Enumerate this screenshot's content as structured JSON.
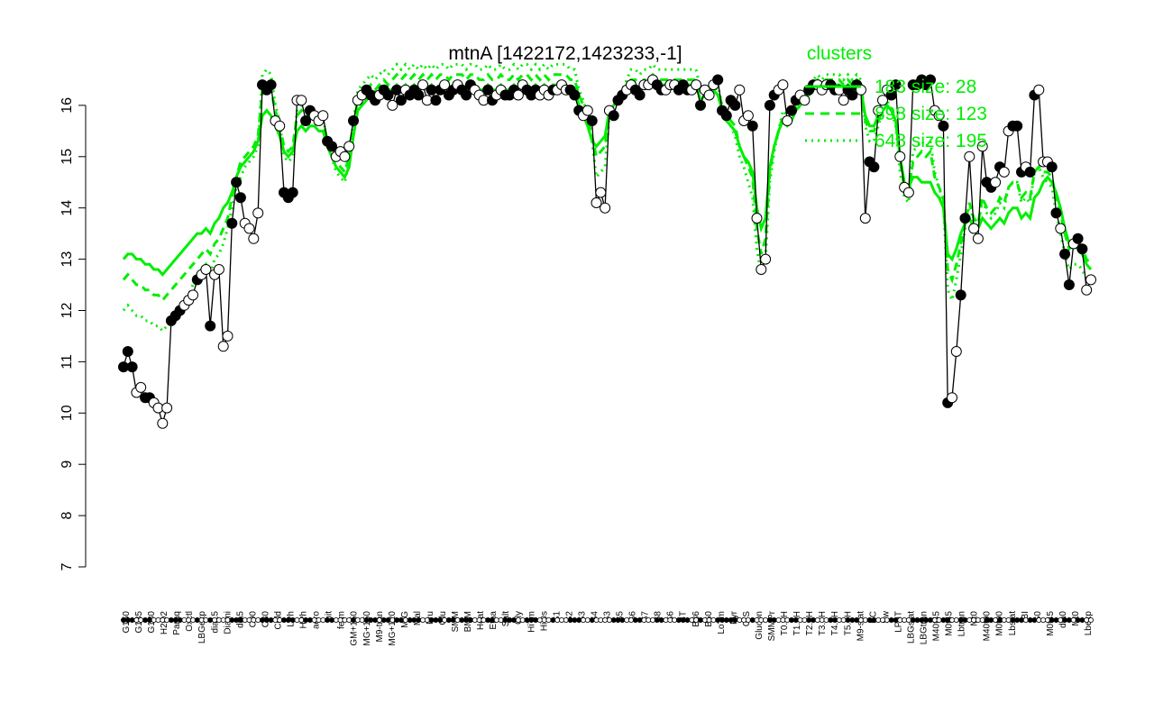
{
  "chart_data": {
    "type": "line",
    "title": "mtnA [1422172,1423233,-1]",
    "xlabel": "",
    "ylabel": "",
    "ylim": [
      7,
      17
    ],
    "y_ticks": [
      "7",
      "8",
      "9",
      "10",
      "11",
      "12",
      "13",
      "14",
      "15",
      "16"
    ],
    "grid": false,
    "legend": {
      "title": "clusters",
      "placement": "top-right",
      "entries": [
        "183 size: 28",
        "898 size: 123",
        "648 size: 195"
      ]
    },
    "x_labels": [
      "G150",
      "G135",
      "G180",
      "H2O2",
      "Paraq",
      "Oxctl",
      "LBGexp",
      "dia15",
      "Diami",
      "dia5",
      "C90",
      "C30",
      "Cold",
      "LPh",
      "HPh",
      "aero",
      "nit",
      "ferm",
      "GM+150",
      "MG+150",
      "M9-tran",
      "MG+120",
      "M/G",
      "Mal",
      "Fru",
      "Glu",
      "SMM",
      "BMM",
      "Heat",
      "Etha",
      "Salt",
      "Gly",
      "HiTm",
      "HiOs",
      "S1",
      "S2",
      "S3",
      "S4",
      "S3",
      "S5",
      "S6",
      "S7",
      "S8",
      "S6",
      "BT",
      "B36",
      "B60",
      "LoTm",
      "Pyr",
      "G/S",
      "Glucon",
      "SMMPr",
      "T0.0H",
      "T1.0H",
      "T2.0H",
      "T3.0H",
      "T4.0H",
      "T5.0H",
      "M9-stat",
      "BC",
      "Sw",
      "LPhT",
      "LBGstat",
      "LBGtran",
      "M40t45",
      "M0t45",
      "Lbtran",
      "Mt0",
      "M40t90",
      "M0t90",
      "Lbstat",
      "BI",
      "S0",
      "M0t45",
      "dia0",
      "Mt0",
      "Lbexp"
    ],
    "series": [
      {
        "color": "#000000",
        "values": [
          10.9,
          11.2,
          10.9,
          10.4,
          10.5,
          10.3,
          10.3,
          10.2,
          10.1,
          9.8,
          10.1,
          11.8,
          11.9,
          12.0,
          12.1,
          12.2,
          12.3,
          12.6,
          12.7,
          12.8,
          11.7,
          12.7,
          12.8,
          11.3,
          11.5,
          13.7,
          14.5,
          14.2,
          13.7,
          13.6,
          13.4,
          13.9,
          16.4,
          16.3,
          16.4,
          15.7,
          15.6,
          14.3,
          14.2,
          14.3,
          16.1,
          16.1,
          15.7,
          15.9,
          15.8,
          15.7,
          15.8,
          15.3,
          15.2,
          15.0,
          15.1,
          15.0,
          15.2,
          15.7,
          16.1,
          16.2,
          16.3,
          16.2,
          16.1,
          16.2,
          16.3,
          16.2,
          16.0,
          16.3,
          16.1,
          16.3,
          16.2,
          16.3,
          16.2,
          16.4,
          16.1,
          16.3,
          16.1,
          16.3,
          16.4,
          16.2,
          16.3,
          16.4,
          16.3,
          16.2,
          16.4,
          16.3,
          16.2,
          16.1,
          16.3,
          16.1,
          16.2,
          16.3,
          16.2,
          16.2,
          16.3,
          16.2,
          16.4,
          16.3,
          16.2,
          16.3,
          16.2,
          16.3,
          16.2,
          16.3,
          16.3,
          16.4,
          16.3,
          16.3,
          16.2,
          15.9,
          15.8,
          15.9,
          15.7,
          14.1,
          14.3,
          14.0,
          15.9,
          15.8,
          16.1,
          16.2,
          16.3,
          16.4,
          16.3,
          16.2,
          16.4,
          16.4,
          16.5,
          16.4,
          16.3,
          16.3,
          16.4,
          16.4,
          16.3,
          16.4,
          16.3,
          16.3,
          16.4,
          16.0,
          16.3,
          16.2,
          16.4,
          16.5,
          15.9,
          15.8,
          16.1,
          16.0,
          16.3,
          15.7,
          15.8,
          15.6,
          13.8,
          12.8,
          13.0,
          16.0,
          16.2,
          16.3,
          16.4,
          15.7,
          15.9,
          16.1,
          16.2,
          16.1,
          16.3,
          16.4,
          16.4,
          16.3,
          16.4,
          16.4,
          16.3,
          16.3,
          16.1,
          16.3,
          16.2,
          16.4,
          16.3,
          13.8,
          14.9,
          14.8,
          15.9,
          16.1,
          16.3,
          16.2,
          16.4,
          15.0,
          14.4,
          14.3,
          16.4,
          16.4,
          16.5,
          16.4,
          16.5,
          15.9,
          15.8,
          15.6,
          10.2,
          10.3,
          11.2,
          12.3,
          13.8,
          15.0,
          13.6,
          13.4,
          15.2,
          14.5,
          14.4,
          14.5,
          14.8,
          14.7,
          15.5,
          15.6,
          15.6,
          14.7,
          14.8,
          14.7,
          16.2,
          16.3,
          14.9,
          14.9,
          14.8,
          13.9,
          13.6,
          13.1,
          12.5,
          13.3,
          13.4,
          13.2,
          12.4,
          12.6
        ],
        "markers": [
          1,
          1,
          1,
          0,
          0,
          1,
          1,
          0,
          0,
          0,
          0,
          1,
          1,
          1,
          0,
          0,
          0,
          1,
          0,
          0,
          1,
          0,
          0,
          0,
          0,
          1,
          1,
          1,
          0,
          0,
          0,
          0,
          1,
          1,
          1,
          0,
          0,
          1,
          1,
          1,
          0,
          0,
          1,
          1,
          0,
          0,
          0,
          1,
          1,
          0,
          0,
          0,
          0,
          1,
          0,
          0,
          1,
          1,
          1,
          0,
          1,
          1,
          0,
          1,
          1,
          0,
          1,
          1,
          1,
          0,
          0,
          1,
          1,
          1,
          0,
          1,
          1,
          0,
          1,
          1,
          1,
          0,
          0,
          0,
          1,
          1,
          0,
          0,
          1,
          1,
          1,
          0,
          0,
          1,
          1,
          1,
          0,
          0,
          0,
          1,
          0,
          0,
          0,
          1,
          1,
          1,
          0,
          0,
          1,
          0,
          0,
          0,
          0,
          1,
          1,
          1,
          0,
          0,
          1,
          1,
          0,
          0,
          0,
          1,
          1,
          0,
          0,
          0,
          1,
          1,
          1,
          0,
          0,
          1,
          0,
          0,
          0,
          1,
          1,
          1,
          1,
          1,
          0,
          0,
          0,
          1,
          0,
          0,
          0,
          1,
          1,
          0,
          0,
          0,
          1,
          1,
          0,
          0,
          1,
          1,
          0,
          0,
          0,
          1,
          1,
          0,
          0,
          1,
          1,
          1,
          0,
          0,
          1,
          1,
          0,
          0,
          0,
          1,
          1,
          0,
          0,
          0,
          1,
          1,
          1,
          1,
          1,
          0,
          0,
          1,
          1,
          0,
          0,
          1,
          1,
          0,
          0,
          0,
          0,
          1,
          1,
          0,
          1,
          0,
          0,
          1,
          1,
          1,
          0,
          1,
          1,
          0,
          0,
          0,
          1,
          1,
          0,
          1,
          1,
          0,
          1,
          1,
          0,
          0,
          1,
          0,
          0,
          1,
          0,
          0,
          1
        ]
      },
      {
        "color": "#00ee00",
        "dash": "solid",
        "values": [
          13.0,
          13.1,
          13.1,
          13.0,
          13.0,
          12.9,
          12.9,
          12.8,
          12.8,
          12.7,
          12.8,
          12.9,
          13.0,
          13.1,
          13.2,
          13.3,
          13.4,
          13.5,
          13.5,
          13.6,
          13.5,
          13.7,
          13.8,
          14.0,
          14.1,
          14.3,
          14.6,
          14.8,
          14.9,
          15.0,
          15.1,
          15.3,
          15.8,
          15.9,
          15.8,
          15.6,
          15.4,
          15.1,
          15.0,
          15.1,
          15.5,
          15.6,
          15.5,
          15.6,
          15.6,
          15.5,
          15.5,
          15.2,
          15.0,
          14.8,
          14.7,
          14.6,
          14.8,
          15.4,
          15.9,
          16.0,
          16.1,
          16.2,
          16.1,
          16.2,
          16.3,
          16.3,
          16.3,
          16.4,
          16.3,
          16.4,
          16.3,
          16.4,
          16.3,
          16.4,
          16.3,
          16.4,
          16.3,
          16.4,
          16.4,
          16.3,
          16.4,
          16.4,
          16.4,
          16.3,
          16.4,
          16.4,
          16.3,
          16.3,
          16.4,
          16.3,
          16.3,
          16.4,
          16.3,
          16.3,
          16.4,
          16.3,
          16.4,
          16.4,
          16.3,
          16.4,
          16.3,
          16.4,
          16.3,
          16.4,
          16.4,
          16.4,
          16.4,
          16.3,
          16.3,
          16.0,
          15.8,
          15.6,
          15.3,
          15.2,
          15.3,
          15.4,
          15.9,
          16.0,
          16.1,
          16.2,
          16.3,
          16.4,
          16.4,
          16.3,
          16.4,
          16.4,
          16.5,
          16.4,
          16.4,
          16.4,
          16.4,
          16.4,
          16.4,
          16.4,
          16.4,
          16.4,
          16.4,
          16.1,
          16.2,
          16.2,
          16.3,
          16.2,
          15.9,
          15.7,
          15.6,
          15.5,
          15.2,
          15.0,
          14.9,
          14.7,
          14.0,
          13.6,
          13.8,
          14.8,
          15.2,
          15.5,
          15.7,
          15.6,
          15.7,
          15.9,
          16.0,
          16.1,
          16.2,
          16.3,
          16.4,
          16.3,
          16.4,
          16.4,
          16.4,
          16.4,
          16.3,
          16.4,
          16.3,
          16.4,
          16.3,
          15.8,
          15.6,
          15.6,
          15.8,
          15.9,
          16.0,
          15.9,
          15.7,
          15.0,
          14.5,
          14.4,
          14.6,
          14.6,
          14.5,
          14.5,
          14.5,
          14.3,
          14.2,
          14.0,
          13.1,
          13.0,
          13.2,
          13.5,
          13.7,
          13.8,
          13.6,
          13.6,
          13.8,
          13.7,
          13.6,
          13.7,
          13.8,
          13.7,
          13.9,
          14.0,
          14.0,
          13.8,
          13.9,
          13.8,
          14.2,
          14.3,
          14.5,
          14.6,
          14.5,
          14.3,
          14.0,
          13.6,
          13.3,
          13.3,
          13.2,
          13.1,
          12.9,
          12.8
        ]
      },
      {
        "color": "#00ee00",
        "dash": "dash",
        "values": [
          12.6,
          12.7,
          12.6,
          12.5,
          12.5,
          12.4,
          12.4,
          12.3,
          12.3,
          12.2,
          12.3,
          12.4,
          12.5,
          12.6,
          12.7,
          12.8,
          12.9,
          13.0,
          13.1,
          13.2,
          13.1,
          13.3,
          13.4,
          13.6,
          13.8,
          14.2,
          14.6,
          14.9,
          15.0,
          15.1,
          15.2,
          15.4,
          16.3,
          16.4,
          16.3,
          15.9,
          15.6,
          15.2,
          15.1,
          15.2,
          15.8,
          15.9,
          15.8,
          15.8,
          15.8,
          15.7,
          15.7,
          15.3,
          15.1,
          14.9,
          14.8,
          14.7,
          15.0,
          15.6,
          16.1,
          16.2,
          16.3,
          16.4,
          16.3,
          16.4,
          16.5,
          16.4,
          16.5,
          16.6,
          16.5,
          16.6,
          16.5,
          16.6,
          16.5,
          16.6,
          16.5,
          16.6,
          16.5,
          16.6,
          16.6,
          16.5,
          16.6,
          16.6,
          16.6,
          16.5,
          16.6,
          16.6,
          16.5,
          16.5,
          16.6,
          16.5,
          16.5,
          16.6,
          16.5,
          16.5,
          16.6,
          16.5,
          16.6,
          16.6,
          16.5,
          16.6,
          16.5,
          16.6,
          16.5,
          16.6,
          16.6,
          16.6,
          16.6,
          16.5,
          16.5,
          16.2,
          16.0,
          15.8,
          15.4,
          15.0,
          15.1,
          15.2,
          15.9,
          16.0,
          16.1,
          16.3,
          16.4,
          16.5,
          16.5,
          16.4,
          16.5,
          16.5,
          16.6,
          16.5,
          16.5,
          16.5,
          16.5,
          16.5,
          16.5,
          16.5,
          16.5,
          16.5,
          16.5,
          16.2,
          16.3,
          16.3,
          16.4,
          16.3,
          16.0,
          15.8,
          15.7,
          15.6,
          15.2,
          15.0,
          14.8,
          14.6,
          13.6,
          13.1,
          13.4,
          14.7,
          15.2,
          15.5,
          15.8,
          15.7,
          15.8,
          16.0,
          16.1,
          16.2,
          16.3,
          16.4,
          16.5,
          16.4,
          16.5,
          16.5,
          16.5,
          16.5,
          16.4,
          16.5,
          16.4,
          16.5,
          16.4,
          15.7,
          15.5,
          15.5,
          15.7,
          15.9,
          16.0,
          15.9,
          15.7,
          14.9,
          14.4,
          14.3,
          14.9,
          15.0,
          15.1,
          15.0,
          15.1,
          14.6,
          14.4,
          14.2,
          12.8,
          12.6,
          12.9,
          13.3,
          13.7,
          14.1,
          13.8,
          13.7,
          14.2,
          14.0,
          13.9,
          14.0,
          14.2,
          14.1,
          14.4,
          14.5,
          14.5,
          14.2,
          14.3,
          14.2,
          14.7,
          14.8,
          14.7,
          14.7,
          14.6,
          14.2,
          13.9,
          13.5,
          13.2,
          13.3,
          13.3,
          13.2,
          13.0,
          12.9
        ]
      },
      {
        "color": "#00ee00",
        "dash": "dot",
        "values": [
          12.0,
          12.1,
          12.0,
          11.9,
          11.9,
          11.8,
          11.8,
          11.7,
          11.7,
          11.6,
          11.7,
          11.8,
          11.9,
          12.0,
          12.2,
          12.3,
          12.5,
          12.7,
          12.8,
          12.9,
          12.7,
          13.0,
          13.1,
          13.3,
          13.6,
          14.0,
          14.4,
          14.6,
          14.8,
          14.9,
          15.0,
          15.2,
          16.6,
          16.7,
          16.6,
          16.0,
          15.7,
          15.0,
          14.9,
          15.0,
          15.9,
          16.0,
          15.9,
          15.9,
          15.9,
          15.8,
          15.8,
          15.2,
          15.0,
          14.7,
          14.6,
          14.5,
          14.9,
          15.7,
          16.3,
          16.4,
          16.5,
          16.6,
          16.5,
          16.6,
          16.7,
          16.6,
          16.7,
          16.8,
          16.7,
          16.8,
          16.7,
          16.8,
          16.7,
          16.8,
          16.7,
          16.8,
          16.7,
          16.8,
          16.8,
          16.7,
          16.8,
          16.8,
          16.8,
          16.7,
          16.8,
          16.8,
          16.7,
          16.7,
          16.8,
          16.7,
          16.7,
          16.8,
          16.7,
          16.7,
          16.8,
          16.7,
          16.8,
          16.8,
          16.7,
          16.8,
          16.7,
          16.8,
          16.7,
          16.8,
          16.8,
          16.8,
          16.8,
          16.7,
          16.7,
          16.3,
          16.1,
          15.8,
          15.3,
          14.6,
          14.7,
          14.8,
          15.8,
          16.0,
          16.1,
          16.3,
          16.5,
          16.7,
          16.7,
          16.6,
          16.7,
          16.7,
          16.8,
          16.7,
          16.7,
          16.7,
          16.7,
          16.7,
          16.7,
          16.7,
          16.7,
          16.7,
          16.7,
          16.3,
          16.4,
          16.4,
          16.5,
          16.4,
          16.0,
          15.7,
          15.6,
          15.4,
          15.0,
          14.8,
          14.5,
          14.2,
          13.2,
          12.7,
          13.0,
          14.5,
          15.1,
          15.5,
          15.9,
          15.8,
          15.9,
          16.1,
          16.2,
          16.3,
          16.4,
          16.5,
          16.6,
          16.5,
          16.6,
          16.6,
          16.6,
          16.6,
          16.5,
          16.6,
          16.5,
          16.6,
          16.5,
          15.6,
          15.3,
          15.3,
          15.6,
          15.9,
          16.1,
          15.9,
          15.6,
          14.7,
          14.2,
          14.1,
          15.1,
          15.2,
          15.3,
          15.2,
          15.3,
          14.7,
          14.4,
          14.1,
          12.4,
          12.2,
          12.6,
          13.1,
          13.6,
          14.1,
          13.7,
          13.6,
          14.2,
          13.9,
          13.8,
          13.9,
          14.1,
          14.0,
          14.4,
          14.5,
          14.5,
          14.1,
          14.2,
          14.1,
          14.7,
          14.8,
          14.6,
          14.5,
          14.4,
          13.9,
          13.5,
          13.1,
          12.8,
          12.9,
          12.9,
          12.8,
          12.6,
          12.5
        ]
      }
    ]
  }
}
